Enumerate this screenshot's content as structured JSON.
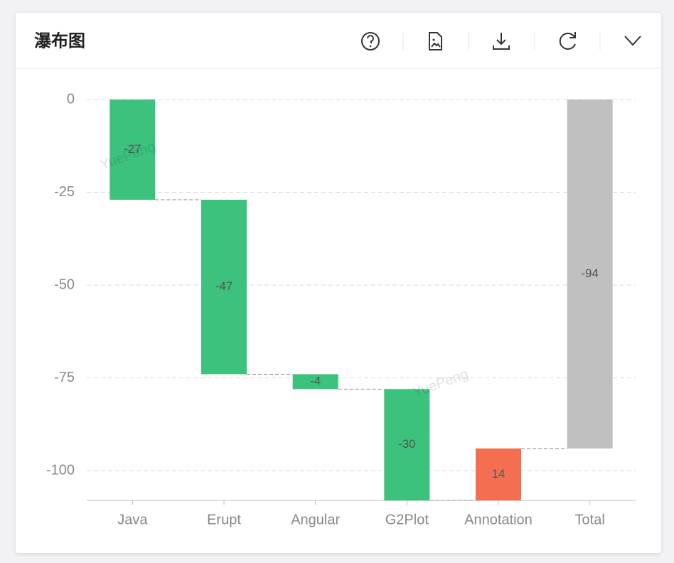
{
  "header": {
    "title": "瀑布图"
  },
  "chart_data": {
    "type": "waterfall",
    "categories": [
      "Java",
      "Erupt",
      "Angular",
      "G2Plot",
      "Annotation",
      "Total"
    ],
    "values": [
      -27,
      -47,
      -4,
      -30,
      14,
      -94
    ],
    "increase_color": "#f46f52",
    "decrease_color": "#3cc27c",
    "total_color": "#c0c0c0",
    "ylim": [
      -108,
      0
    ],
    "yticks": [
      0,
      -25,
      -50,
      -75,
      -100
    ],
    "grid": true,
    "watermark": "YuePeng"
  }
}
